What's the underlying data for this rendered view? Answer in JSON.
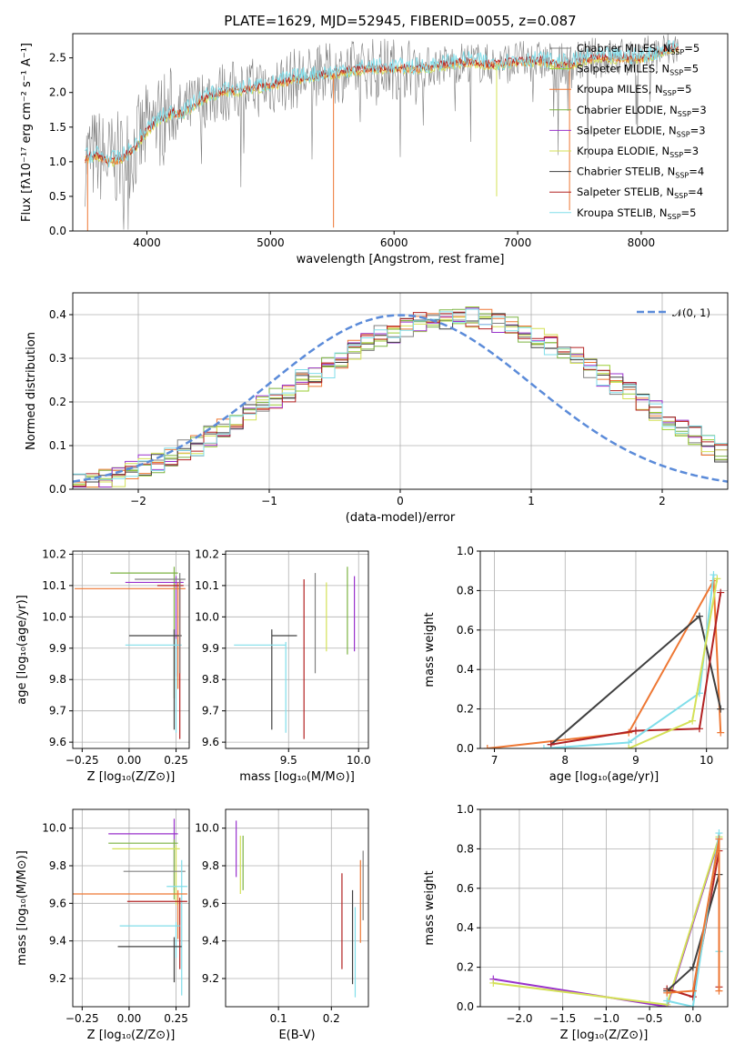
{
  "title": "PLATE=1629, MJD=52945, FIBERID=0055, z=0.087",
  "colors": {
    "chabrier_miles": "#808080",
    "salpeter_miles": "#9acd32",
    "kroupa_miles": "#ee7733",
    "chabrier_elodie": "#7cb342",
    "salpeter_elodie": "#9932cc",
    "kroupa_elodie": "#d4e157",
    "chabrier_stelib": "#404040",
    "salpeter_stelib": "#b22222",
    "kroupa_stelib": "#80deea",
    "normal": "#5b8bd9"
  },
  "chart_data": [
    {
      "id": "spectrum",
      "type": "line",
      "title": "PLATE=1629, MJD=52945, FIBERID=0055, z=0.087",
      "xlabel": "wavelength [Angstrom, rest frame]",
      "ylabel": "Flux [fλ10⁻¹⁷ erg cm⁻² s⁻¹ A⁻¹]",
      "xlim": [
        3400,
        8700
      ],
      "ylim": [
        0,
        2.85
      ],
      "xticks": [
        "4000",
        "5000",
        "6000",
        "7000",
        "8000"
      ],
      "yticks": [
        "0.0",
        "0.5",
        "1.0",
        "1.5",
        "2.0",
        "2.5"
      ],
      "x": [
        3500,
        3600,
        3700,
        3800,
        3900,
        4000,
        4100,
        4200,
        4300,
        4400,
        4500,
        4600,
        4800,
        5000,
        5200,
        5400,
        5600,
        5800,
        6000,
        6200,
        6400,
        6600,
        6800,
        7000,
        7200,
        7400,
        7600,
        7800,
        8000,
        8200,
        8300
      ],
      "model": [
        1.05,
        1.1,
        1.0,
        1.05,
        1.2,
        1.45,
        1.6,
        1.7,
        1.7,
        1.85,
        1.95,
        2.0,
        2.05,
        2.1,
        2.2,
        2.25,
        2.3,
        2.35,
        2.35,
        2.35,
        2.4,
        2.45,
        2.4,
        2.45,
        2.45,
        2.4,
        2.5,
        2.5,
        2.5,
        2.6,
        2.65
      ],
      "legend": [
        {
          "key": "chabrier_miles",
          "label": "Chabrier MILES, N",
          "sub": "SSP",
          "suffix": "=5"
        },
        {
          "key": "salpeter_miles",
          "label": "Salpeter MILES, N",
          "sub": "SSP",
          "suffix": "=5"
        },
        {
          "key": "kroupa_miles",
          "label": "Kroupa MILES, N",
          "sub": "SSP",
          "suffix": "=5"
        },
        {
          "key": "chabrier_elodie",
          "label": "Chabrier ELODIE, N",
          "sub": "SSP",
          "suffix": "=3"
        },
        {
          "key": "salpeter_elodie",
          "label": "Salpeter ELODIE, N",
          "sub": "SSP",
          "suffix": "=3"
        },
        {
          "key": "kroupa_elodie",
          "label": "Kroupa ELODIE, N",
          "sub": "SSP",
          "suffix": "=3"
        },
        {
          "key": "chabrier_stelib",
          "label": "Chabrier STELIB, N",
          "sub": "SSP",
          "suffix": "=4"
        },
        {
          "key": "salpeter_stelib",
          "label": "Salpeter STELIB, N",
          "sub": "SSP",
          "suffix": "=4"
        },
        {
          "key": "kroupa_stelib",
          "label": "Kroupa STELIB, N",
          "sub": "SSP",
          "suffix": "=5"
        }
      ]
    },
    {
      "id": "residuals",
      "type": "step",
      "xlabel": "(data-model)/error",
      "ylabel": "Normed distribution",
      "xlim": [
        -2.5,
        2.5
      ],
      "ylim": [
        0,
        0.45
      ],
      "xticks": [
        "−2",
        "−1",
        "0",
        "1",
        "2"
      ],
      "yticks": [
        "0.0",
        "0.1",
        "0.2",
        "0.3",
        "0.4"
      ],
      "legend": "𝒩(0, 1)",
      "bin_width": 0.1,
      "bins_start": -2.5,
      "density": [
        0.018,
        0.02,
        0.025,
        0.03,
        0.04,
        0.055,
        0.06,
        0.07,
        0.09,
        0.1,
        0.12,
        0.14,
        0.16,
        0.18,
        0.2,
        0.21,
        0.22,
        0.25,
        0.26,
        0.28,
        0.3,
        0.32,
        0.34,
        0.35,
        0.36,
        0.37,
        0.38,
        0.385,
        0.39,
        0.4,
        0.395,
        0.39,
        0.38,
        0.37,
        0.36,
        0.345,
        0.33,
        0.31,
        0.3,
        0.28,
        0.26,
        0.24,
        0.22,
        0.2,
        0.18,
        0.16,
        0.14,
        0.12,
        0.1,
        0.085,
        0.07
      ]
    },
    {
      "id": "age_vs_Z",
      "type": "errorbar",
      "xlabel": "Z [log₁₀(Z/Z⊙)]",
      "ylabel": "age  [log₁₀(age/yr)]",
      "xlim": [
        -0.3,
        0.32
      ],
      "ylim": [
        9.58,
        10.21
      ],
      "xticks": [
        "−0.25",
        "0.00",
        "0.25"
      ],
      "yticks": [
        "9.6",
        "9.7",
        "9.8",
        "9.9",
        "10.0",
        "10.1",
        "10.2"
      ],
      "points": [
        {
          "key": "chabrier_elodie",
          "x": 0.24,
          "xerr": [
            0.34,
            0.02
          ],
          "y": 10.14,
          "yerr": [
            0.4,
            0.02
          ]
        },
        {
          "key": "salpeter_elodie",
          "x": 0.25,
          "xerr": [
            0.27,
            0.04
          ],
          "y": 10.11,
          "yerr": [
            0.3,
            0.02
          ]
        },
        {
          "key": "kroupa_miles",
          "x": 0.26,
          "xerr": [
            0.55,
            0.04
          ],
          "y": 10.09,
          "yerr": [
            0.32,
            0.02
          ]
        },
        {
          "key": "chabrier_stelib",
          "x": 0.24,
          "xerr": [
            0.24,
            0.04
          ],
          "y": 9.94,
          "yerr": [
            0.3,
            0.02
          ]
        },
        {
          "key": "kroupa_stelib",
          "x": 0.25,
          "xerr": [
            0.27,
            0.03
          ],
          "y": 9.91,
          "yerr": [
            0.28,
            0.02
          ]
        },
        {
          "key": "salpeter_stelib",
          "x": 0.27,
          "xerr": [
            0.12,
            0.02
          ],
          "y": 10.1,
          "yerr": [
            0.49,
            0.02
          ]
        },
        {
          "key": "chabrier_miles",
          "x": 0.27,
          "xerr": [
            0.24,
            0.03
          ],
          "y": 10.12,
          "yerr": [
            0.3,
            0.02
          ]
        }
      ]
    },
    {
      "id": "age_vs_mass",
      "type": "errorbar",
      "xlabel": "mass [log₁₀(M/M⊙)]",
      "ylabel": "",
      "xlim": [
        9.05,
        10.07
      ],
      "ylim": [
        9.58,
        10.21
      ],
      "xticks": [
        "9.5",
        "10.0"
      ],
      "yticks": [
        "9.6",
        "9.7",
        "9.8",
        "9.9",
        "10.0",
        "10.1",
        "10.2"
      ],
      "points": [
        {
          "key": "chabrier_stelib",
          "x": 9.38,
          "xerr": [
            0.0,
            0.18
          ],
          "y": 9.94,
          "yerr": [
            0.3,
            0.02
          ]
        },
        {
          "key": "kroupa_stelib",
          "x": 9.48,
          "xerr": [
            0.37,
            0.0
          ],
          "y": 9.91,
          "yerr": [
            0.28,
            0.01
          ]
        },
        {
          "key": "salpeter_stelib",
          "x": 9.61,
          "xerr": [
            0.0,
            0.0
          ],
          "y": 10.1,
          "yerr": [
            0.49,
            0.02
          ]
        },
        {
          "key": "chabrier_miles",
          "x": 9.69,
          "xerr": [
            0.0,
            0.0
          ],
          "y": 10.12,
          "yerr": [
            0.3,
            0.02
          ]
        },
        {
          "key": "kroupa_elodie",
          "x": 9.77,
          "xerr": [
            0.0,
            0.0
          ],
          "y": 10.09,
          "yerr": [
            0.2,
            0.02
          ]
        },
        {
          "key": "chabrier_elodie",
          "x": 9.92,
          "xerr": [
            0.0,
            0.0
          ],
          "y": 10.14,
          "yerr": [
            0.26,
            0.02
          ]
        },
        {
          "key": "salpeter_elodie",
          "x": 9.97,
          "xerr": [
            0.0,
            0.0
          ],
          "y": 10.11,
          "yerr": [
            0.22,
            0.02
          ]
        }
      ]
    },
    {
      "id": "weight_vs_age",
      "type": "line",
      "xlabel": "age  [log₁₀(age/yr)]",
      "ylabel": "mass weight",
      "xlim": [
        6.8,
        10.3
      ],
      "ylim": [
        0,
        1.0
      ],
      "xticks": [
        "7",
        "8",
        "9",
        "10"
      ],
      "yticks": [
        "0.0",
        "0.2",
        "0.4",
        "0.6",
        "0.8",
        "1.0"
      ],
      "series": [
        {
          "key": "kroupa_miles",
          "x": [
            6.9,
            8.9,
            10.1,
            10.2
          ],
          "y": [
            0.0,
            0.08,
            0.85,
            0.08
          ]
        },
        {
          "key": "chabrier_stelib",
          "x": [
            7.8,
            9.9,
            10.2
          ],
          "y": [
            0.02,
            0.67,
            0.2
          ]
        },
        {
          "key": "salpeter_stelib",
          "x": [
            7.8,
            9.0,
            9.9,
            10.2
          ],
          "y": [
            0.02,
            0.09,
            0.1,
            0.79
          ]
        },
        {
          "key": "kroupa_stelib",
          "x": [
            7.7,
            8.9,
            9.9,
            10.1
          ],
          "y": [
            0.0,
            0.03,
            0.28,
            0.88
          ]
        },
        {
          "key": "kroupa_elodie",
          "x": [
            8.9,
            9.8,
            10.15
          ],
          "y": [
            0.0,
            0.14,
            0.86
          ]
        }
      ]
    },
    {
      "id": "mass_vs_Z",
      "type": "errorbar",
      "xlabel": "Z [log₁₀(Z/Z⊙)]",
      "ylabel": "mass [log₁₀(M/M⊙)]",
      "xlim": [
        -0.3,
        0.32
      ],
      "ylim": [
        9.05,
        10.1
      ],
      "xticks": [
        "−0.25",
        "0.00",
        "0.25"
      ],
      "yticks": [
        "9.2",
        "9.4",
        "9.6",
        "9.8",
        "10.0"
      ],
      "points": [
        {
          "key": "salpeter_elodie",
          "x": 0.24,
          "xerr": [
            0.35,
            0.02
          ],
          "y": 9.97,
          "yerr": [
            0.3,
            0.08
          ]
        },
        {
          "key": "chabrier_elodie",
          "x": 0.24,
          "xerr": [
            0.35,
            0.02
          ],
          "y": 9.92,
          "yerr": [
            0.3,
            0.02
          ]
        },
        {
          "key": "kroupa_elodie",
          "x": 0.25,
          "xerr": [
            0.34,
            0.02
          ],
          "y": 9.89,
          "yerr": [
            0.3,
            0.02
          ]
        },
        {
          "key": "chabrier_miles",
          "x": 0.27,
          "xerr": [
            0.3,
            0.03
          ],
          "y": 9.77,
          "yerr": [
            0.0,
            0.0
          ]
        },
        {
          "key": "kroupa_stelib",
          "x": 0.28,
          "xerr": [
            0.08,
            0.03
          ],
          "y": 9.69,
          "yerr": [
            0.58,
            0.14
          ]
        },
        {
          "key": "kroupa_miles",
          "x": 0.26,
          "xerr": [
            0.56,
            0.05
          ],
          "y": 9.65,
          "yerr": [
            0.24,
            0.02
          ]
        },
        {
          "key": "salpeter_stelib",
          "x": 0.27,
          "xerr": [
            0.28,
            0.04
          ],
          "y": 9.61,
          "yerr": [
            0.36,
            0.02
          ]
        },
        {
          "key": "kroupa_stelib",
          "x": 0.25,
          "xerr": [
            0.3,
            0.02
          ],
          "y": 9.48,
          "yerr": [
            0.17,
            0.02
          ]
        },
        {
          "key": "chabrier_stelib",
          "x": 0.24,
          "xerr": [
            0.3,
            0.04
          ],
          "y": 9.37,
          "yerr": [
            0.19,
            0.05
          ]
        }
      ]
    },
    {
      "id": "mass_vs_ebv",
      "type": "errorbar",
      "xlabel": "E(B-V)",
      "ylabel": "",
      "xlim": [
        0.0,
        0.27
      ],
      "ylim": [
        9.05,
        10.1
      ],
      "xticks": [
        "0.1",
        "0.2"
      ],
      "yticks": [
        "9.2",
        "9.4",
        "9.6",
        "9.8",
        "10.0"
      ],
      "points": [
        {
          "key": "salpeter_elodie",
          "x": 0.02,
          "y": 9.97,
          "yerr": [
            0.23,
            0.07
          ]
        },
        {
          "key": "kroupa_elodie",
          "x": 0.028,
          "y": 9.89,
          "yerr": [
            0.24,
            0.07
          ]
        },
        {
          "key": "chabrier_elodie",
          "x": 0.033,
          "y": 9.92,
          "yerr": [
            0.25,
            0.04
          ]
        },
        {
          "key": "salpeter_stelib",
          "x": 0.22,
          "y": 9.61,
          "yerr": [
            0.36,
            0.15
          ]
        },
        {
          "key": "chabrier_stelib",
          "x": 0.24,
          "y": 9.37,
          "yerr": [
            0.2,
            0.3
          ]
        },
        {
          "key": "kroupa_stelib",
          "x": 0.245,
          "y": 9.48,
          "yerr": [
            0.38,
            0.1
          ]
        },
        {
          "key": "kroupa_miles",
          "x": 0.255,
          "y": 9.65,
          "yerr": [
            0.26,
            0.18
          ]
        },
        {
          "key": "chabrier_miles",
          "x": 0.26,
          "y": 9.77,
          "yerr": [
            0.26,
            0.11
          ]
        }
      ]
    },
    {
      "id": "weight_vs_Z",
      "type": "line",
      "xlabel": "Z [log₁₀(Z/Z⊙)]",
      "ylabel": "mass weight",
      "xlim": [
        -2.45,
        0.4
      ],
      "ylim": [
        0,
        1.0
      ],
      "xticks": [
        "−2.0",
        "−1.5",
        "−1.0",
        "−0.5",
        "0.0"
      ],
      "yticks": [
        "0.0",
        "0.2",
        "0.4",
        "0.6",
        "0.8",
        "1.0"
      ],
      "series": [
        {
          "key": "salpeter_elodie",
          "x": [
            -2.3,
            -0.3,
            0.3
          ],
          "y": [
            0.14,
            0.0,
            0.85
          ]
        },
        {
          "key": "kroupa_elodie",
          "x": [
            -2.3,
            -0.3,
            0.3
          ],
          "y": [
            0.12,
            0.01,
            0.86
          ]
        },
        {
          "key": "salpeter_stelib",
          "x": [
            -0.3,
            0.0,
            0.3,
            0.3
          ],
          "y": [
            0.09,
            0.05,
            0.79,
            0.1
          ]
        },
        {
          "key": "chabrier_stelib",
          "x": [
            -0.3,
            0.0,
            0.3
          ],
          "y": [
            0.08,
            0.2,
            0.67
          ]
        },
        {
          "key": "kroupa_stelib",
          "x": [
            -0.3,
            0.0,
            0.3,
            0.3
          ],
          "y": [
            0.03,
            0.0,
            0.88,
            0.28
          ]
        },
        {
          "key": "kroupa_miles",
          "x": [
            -0.3,
            0.0,
            0.3,
            0.3
          ],
          "y": [
            0.07,
            0.08,
            0.85,
            0.08
          ]
        }
      ]
    }
  ]
}
